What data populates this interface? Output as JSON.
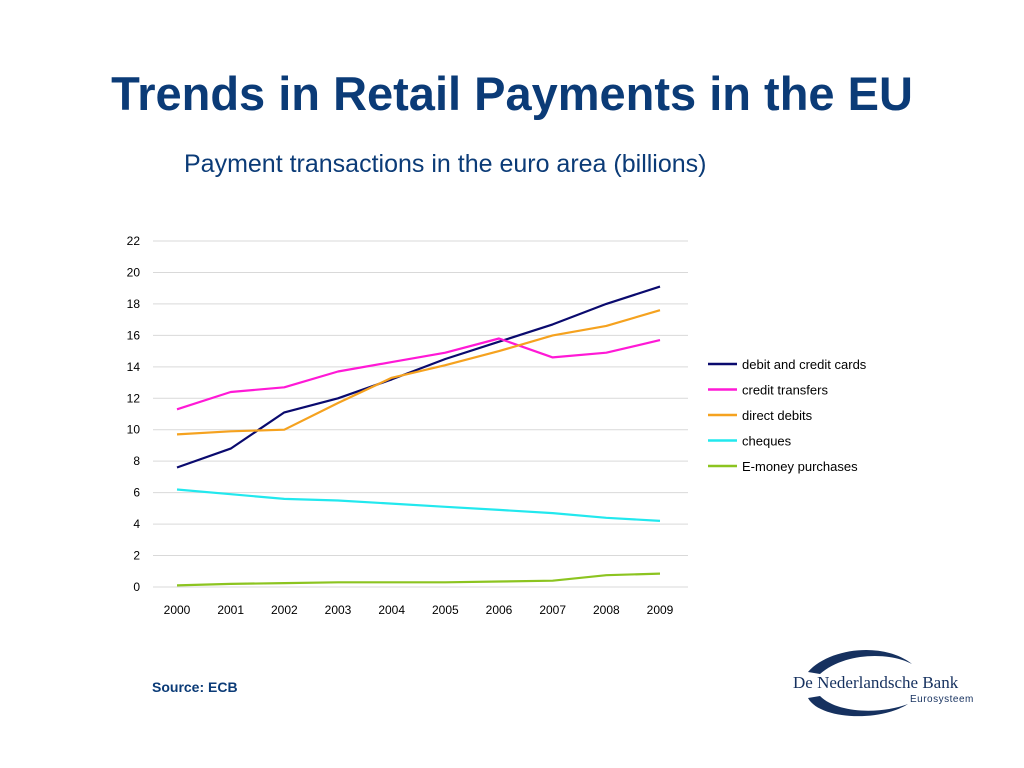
{
  "slide": {
    "title": "Trends in Retail Payments in the EU",
    "subtitle": "Payment transactions in the euro area (billions)",
    "source": "Source: ECB"
  },
  "logo": {
    "name": "De Nederlandsche Bank",
    "sub": "Eurosysteem",
    "color": "#16315f"
  },
  "chart_data": {
    "type": "line",
    "title": "",
    "xlabel": "",
    "ylabel": "",
    "categories": [
      "2000",
      "2001",
      "2002",
      "2003",
      "2004",
      "2005",
      "2006",
      "2007",
      "2008",
      "2009"
    ],
    "ylim": [
      0,
      22
    ],
    "yticks": [
      0,
      2,
      4,
      6,
      8,
      10,
      12,
      14,
      16,
      18,
      20,
      22
    ],
    "grid": true,
    "legend_position": "right",
    "series": [
      {
        "name": "debit and credit cards",
        "color": "#0a0a6e",
        "values": [
          7.6,
          8.8,
          11.1,
          12.0,
          13.2,
          14.5,
          15.6,
          16.7,
          18.0,
          19.1
        ]
      },
      {
        "name": "credit transfers",
        "color": "#ff19d6",
        "values": [
          11.3,
          12.4,
          12.7,
          13.7,
          14.3,
          14.9,
          15.8,
          14.6,
          14.9,
          15.7
        ]
      },
      {
        "name": "direct debits",
        "color": "#f5a21f",
        "values": [
          9.7,
          9.9,
          10.0,
          11.7,
          13.3,
          14.1,
          15.0,
          16.0,
          16.6,
          17.6
        ]
      },
      {
        "name": "cheques",
        "color": "#22e8ee",
        "values": [
          6.2,
          5.9,
          5.6,
          5.5,
          5.3,
          5.1,
          4.9,
          4.7,
          4.4,
          4.2
        ]
      },
      {
        "name": "E-money purchases",
        "color": "#8cc420",
        "values": [
          0.1,
          0.2,
          0.25,
          0.3,
          0.3,
          0.3,
          0.35,
          0.4,
          0.75,
          0.85
        ]
      }
    ]
  }
}
